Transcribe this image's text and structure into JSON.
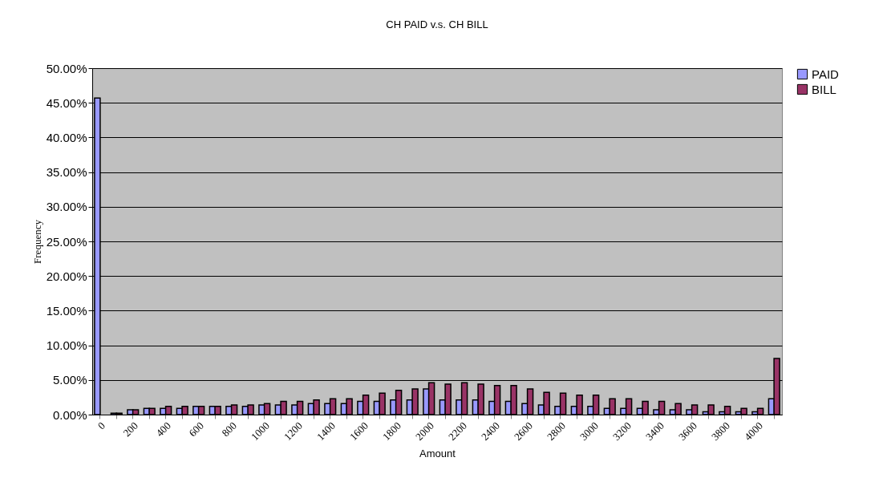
{
  "chart_data": {
    "type": "bar",
    "title": "CH PAID v.s. CH BILL",
    "xlabel": "Amount",
    "ylabel": "Frequency",
    "categories": [
      "0",
      null,
      "200",
      null,
      "400",
      null,
      "600",
      null,
      "800",
      null,
      "1000",
      null,
      "1200",
      null,
      "1400",
      null,
      "1600",
      null,
      "1800",
      null,
      "2000",
      null,
      "2200",
      null,
      "2400",
      null,
      "2600",
      null,
      "2800",
      null,
      "3000",
      null,
      "3200",
      null,
      "3400",
      null,
      "3600",
      null,
      "3800",
      null,
      "4000",
      null
    ],
    "series": [
      {
        "name": "PAID",
        "color": "#9999ff",
        "values": [
          45.7,
          0.2,
          0.7,
          0.9,
          0.9,
          0.9,
          1.2,
          1.2,
          1.2,
          1.2,
          1.4,
          1.4,
          1.4,
          1.6,
          1.6,
          1.6,
          1.9,
          1.9,
          2.1,
          2.1,
          3.7,
          2.1,
          2.1,
          2.1,
          1.9,
          1.9,
          1.6,
          1.4,
          1.2,
          1.2,
          1.2,
          0.9,
          0.9,
          0.9,
          0.7,
          0.7,
          0.7,
          0.4,
          0.4,
          0.4,
          0.4,
          2.3
        ]
      },
      {
        "name": "BILL",
        "color": "#993366",
        "values": [
          null,
          0.2,
          0.7,
          0.9,
          1.2,
          1.2,
          1.2,
          1.2,
          1.4,
          1.4,
          1.6,
          1.9,
          1.9,
          2.1,
          2.3,
          2.3,
          2.8,
          3.1,
          3.5,
          3.7,
          4.6,
          4.4,
          4.6,
          4.4,
          4.2,
          4.2,
          3.7,
          3.2,
          3.1,
          2.8,
          2.8,
          2.3,
          2.3,
          1.9,
          1.9,
          1.6,
          1.4,
          1.4,
          1.2,
          0.9,
          0.9,
          8.1
        ]
      }
    ],
    "ylim": [
      0,
      50
    ],
    "yticks": [
      {
        "value": 0,
        "label": "0.00%"
      },
      {
        "value": 5,
        "label": "5.00%"
      },
      {
        "value": 10,
        "label": "10.00%"
      },
      {
        "value": 15,
        "label": "15.00%"
      },
      {
        "value": 20,
        "label": "20.00%"
      },
      {
        "value": 25,
        "label": "25.00%"
      },
      {
        "value": 30,
        "label": "30.00%"
      },
      {
        "value": 35,
        "label": "35.00%"
      },
      {
        "value": 40,
        "label": "40.00%"
      },
      {
        "value": 45,
        "label": "45.00%"
      },
      {
        "value": 50,
        "label": "50.00%"
      }
    ],
    "grid": "y",
    "legend": "right"
  }
}
